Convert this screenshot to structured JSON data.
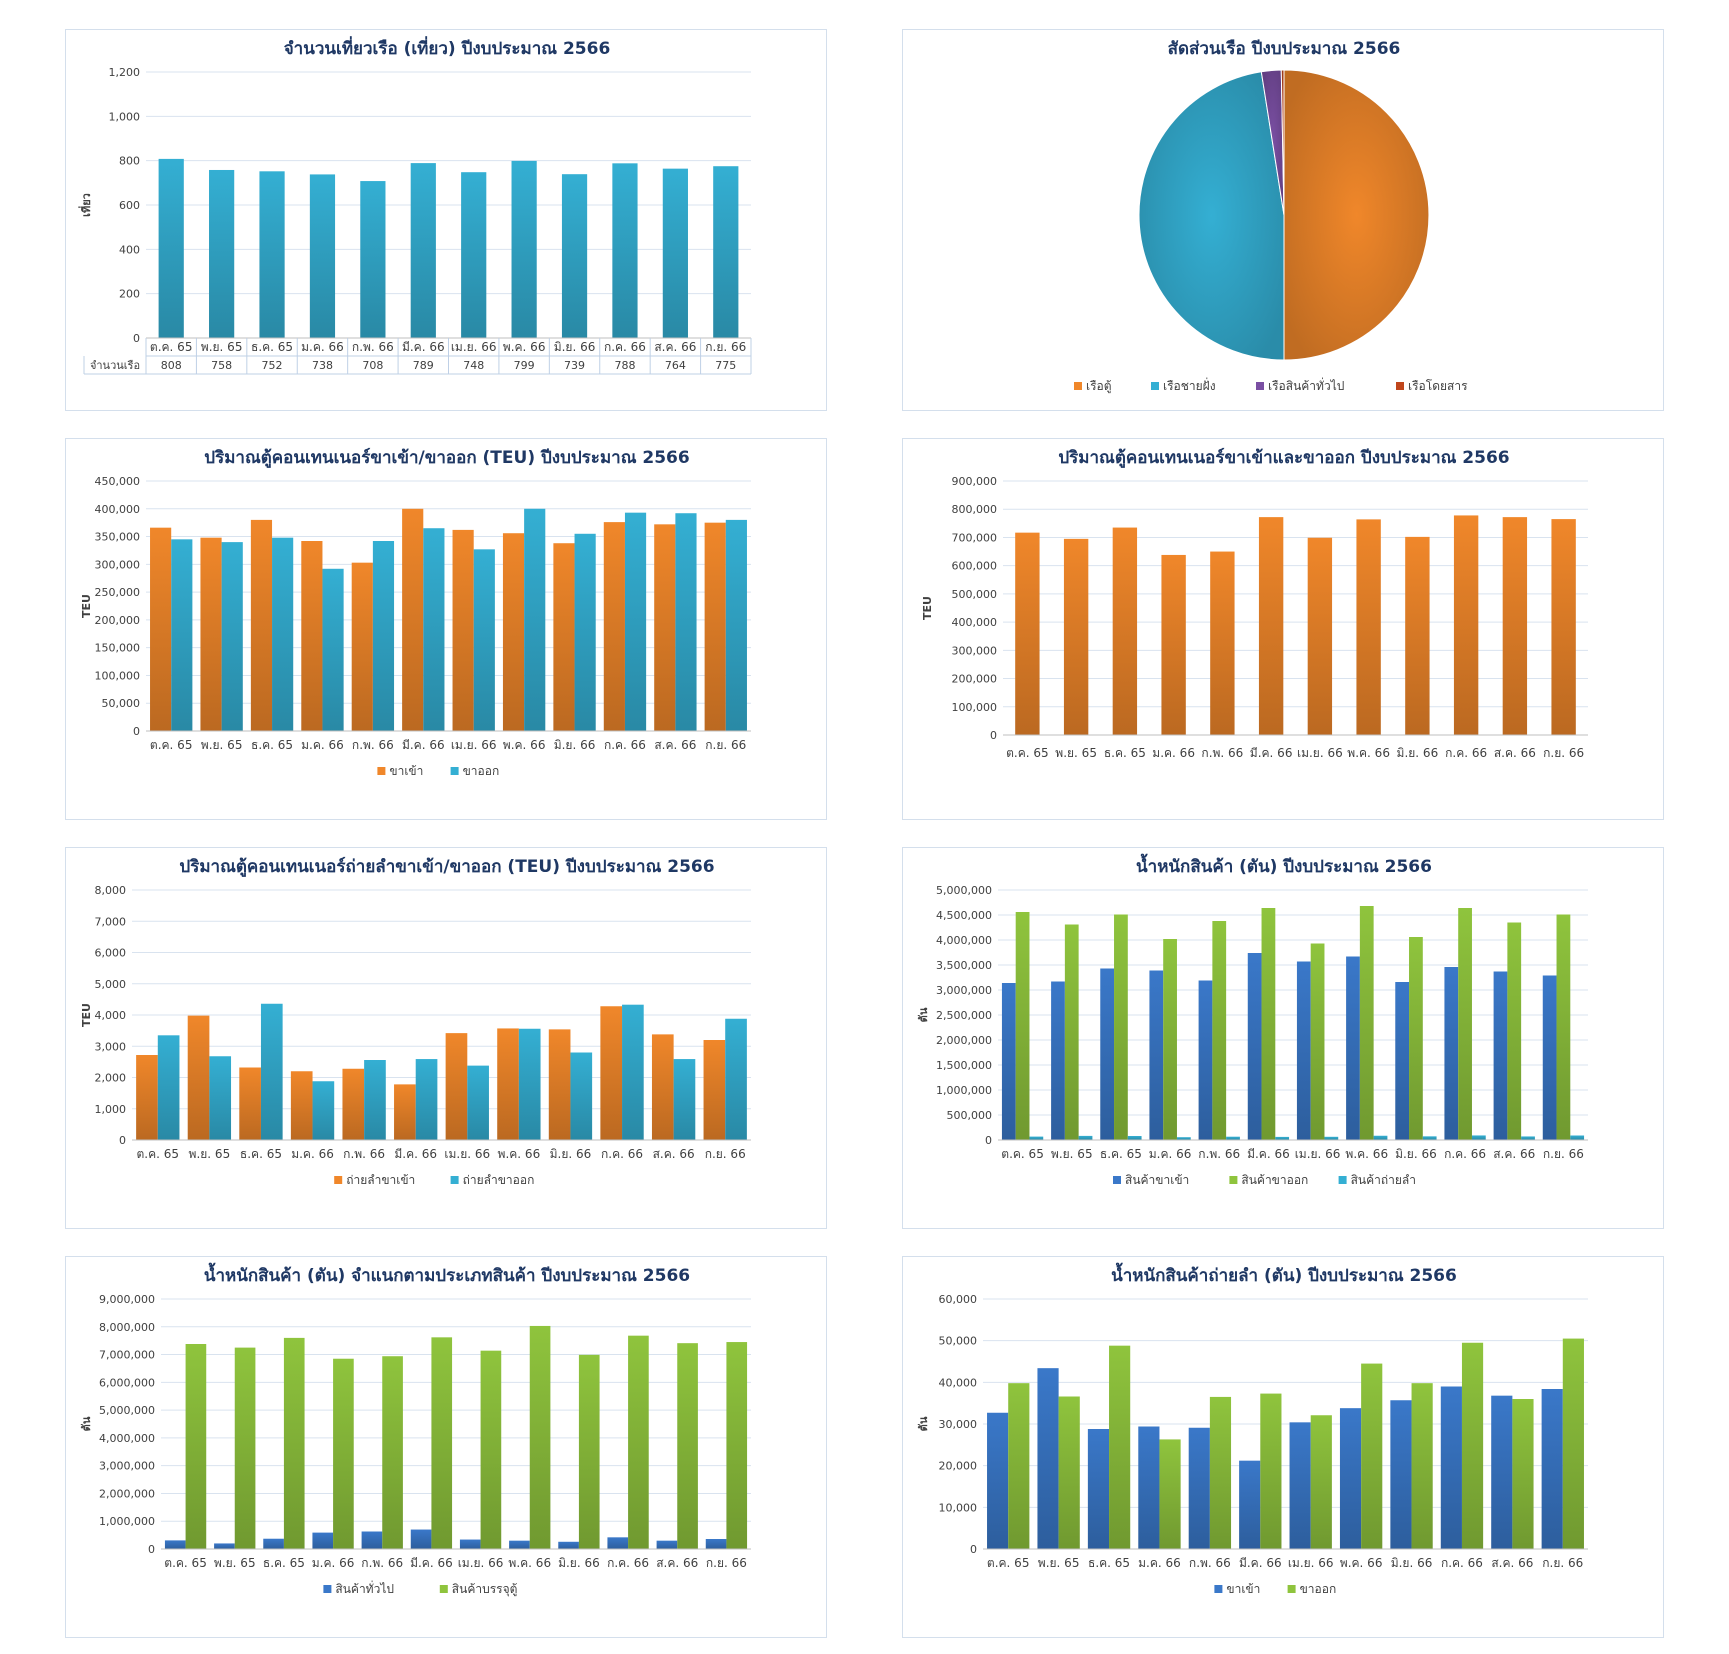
{
  "months": [
    "ต.ค. 65",
    "พ.ย. 65",
    "ธ.ค. 65",
    "ม.ค. 66",
    "ก.พ. 66",
    "มี.ค. 66",
    "เม.ย. 66",
    "พ.ค. 66",
    "มิ.ย. 66",
    "ก.ค. 66",
    "ส.ค. 66",
    "ก.ย. 66"
  ],
  "colors": {
    "blue_series": "#34afd3",
    "orange": "#f0872a",
    "green": "#8fc43d",
    "darkblue": "#3a78c9",
    "purple": "#7a4fa3",
    "red": "#c0461c"
  },
  "chart_data": [
    {
      "id": "c1",
      "type": "bar",
      "title": "จำนวนเที่ยวเรือ (เที่ยว) ปีงบประมาณ 2566",
      "ylabel": "เที่ยว",
      "ylim": [
        0,
        1200
      ],
      "ytick_step": 200,
      "ytick_labels": [
        "0",
        "200",
        "400",
        "600",
        "800",
        "1,000",
        "1,200"
      ],
      "categories": [
        "ต.ค. 65",
        "พ.ย. 65",
        "ธ.ค. 65",
        "ม.ค. 66",
        "ก.พ. 66",
        "มี.ค. 66",
        "เม.ย. 66",
        "พ.ค. 66",
        "มิ.ย. 66",
        "ก.ค. 66",
        "ส.ค. 66",
        "ก.ย. 66"
      ],
      "series": [
        {
          "name": "จำนวนเรือ",
          "color": "#34afd3",
          "values": [
            808,
            758,
            752,
            738,
            708,
            789,
            748,
            799,
            739,
            788,
            764,
            775
          ]
        }
      ],
      "data_table": true,
      "grid": true
    },
    {
      "id": "c2",
      "type": "pie",
      "title": "สัดส่วนเรือ ปีงบประมาณ 2566",
      "slices": [
        {
          "name": "เรือตู้",
          "value": 50,
          "color": "#f0872a"
        },
        {
          "name": "เรือชายฝั่ง",
          "value": 47.5,
          "color": "#34afd3"
        },
        {
          "name": "เรือสินค้าทั่วไป",
          "value": 2.2,
          "color": "#7a4fa3"
        },
        {
          "name": "เรือโดยสาร",
          "value": 0.3,
          "color": "#c0461c"
        }
      ],
      "legend": "bottom"
    },
    {
      "id": "c3",
      "type": "bar",
      "title": "ปริมาณตู้คอนเทนเนอร์ขาเข้า/ขาออก (TEU) ปีงบประมาณ 2566",
      "ylabel": "TEU",
      "ylim": [
        0,
        450000
      ],
      "ytick_labels": [
        "0",
        "50,000",
        "100,000",
        "150,000",
        "200,000",
        "250,000",
        "300,000",
        "350,000",
        "400,000",
        "450,000"
      ],
      "categories": [
        "ต.ค. 65",
        "พ.ย. 65",
        "ธ.ค. 65",
        "ม.ค. 66",
        "ก.พ. 66",
        "มี.ค. 66",
        "เม.ย. 66",
        "พ.ค. 66",
        "มิ.ย. 66",
        "ก.ค. 66",
        "ส.ค. 66",
        "ก.ย. 66"
      ],
      "series": [
        {
          "name": "ขาเข้า",
          "color": "#f0872a",
          "values": [
            366000,
            348000,
            380000,
            342000,
            303000,
            400000,
            362000,
            356000,
            338000,
            376000,
            372000,
            375000
          ]
        },
        {
          "name": "ขาออก",
          "color": "#34afd3",
          "values": [
            345000,
            340000,
            348000,
            292000,
            342000,
            365000,
            327000,
            400000,
            355000,
            393000,
            392000,
            380000
          ]
        }
      ],
      "legend": "bottom",
      "grid": true
    },
    {
      "id": "c4",
      "type": "bar",
      "title": "ปริมาณตู้คอนเทนเนอร์ขาเข้าและขาออก ปีงบประมาณ 2566",
      "ylabel": "TEU",
      "ylim": [
        0,
        900000
      ],
      "ytick_labels": [
        "0",
        "100,000",
        "200,000",
        "300,000",
        "400,000",
        "500,000",
        "600,000",
        "700,000",
        "800,000",
        "900,000"
      ],
      "categories": [
        "ต.ค. 65",
        "พ.ย. 65",
        "ธ.ค. 65",
        "ม.ค. 66",
        "ก.พ. 66",
        "มี.ค. 66",
        "เม.ย. 66",
        "พ.ค. 66",
        "มิ.ย. 66",
        "ก.ค. 66",
        "ส.ค. 66",
        "ก.ย. 66"
      ],
      "series": [
        {
          "name": "",
          "color": "#f0872a",
          "values": [
            717000,
            695000,
            735000,
            638000,
            650000,
            772000,
            699000,
            764000,
            702000,
            778000,
            772000,
            765000
          ]
        }
      ],
      "grid": true
    },
    {
      "id": "c5",
      "type": "bar",
      "title": "ปริมาณตู้คอนเทนเนอร์ถ่ายลำขาเข้า/ขาออก (TEU) ปีงบประมาณ 2566",
      "ylabel": "TEU",
      "ylim": [
        0,
        8000
      ],
      "ytick_labels": [
        "0",
        "1,000",
        "2,000",
        "3,000",
        "4,000",
        "5,000",
        "6,000",
        "7,000",
        "8,000"
      ],
      "categories": [
        "ต.ค. 65",
        "พ.ย. 65",
        "ธ.ค. 65",
        "ม.ค. 66",
        "ก.พ. 66",
        "มี.ค. 66",
        "เม.ย. 66",
        "พ.ค. 66",
        "มิ.ย. 66",
        "ก.ค. 66",
        "ส.ค. 66",
        "ก.ย. 66"
      ],
      "series": [
        {
          "name": "ถ่ายลำขาเข้า",
          "color": "#f0872a",
          "values": [
            2720,
            3980,
            2320,
            2200,
            2280,
            1780,
            3420,
            3570,
            3540,
            4280,
            3380,
            3200
          ]
        },
        {
          "name": "ถ่ายลำขาออก",
          "color": "#34afd3",
          "values": [
            3350,
            2680,
            4360,
            1880,
            2560,
            2590,
            2380,
            3560,
            2800,
            4330,
            2590,
            3880
          ]
        }
      ],
      "legend": "bottom",
      "grid": true
    },
    {
      "id": "c6",
      "type": "bar",
      "title": "น้ำหนักสินค้า (ตัน) ปีงบประมาณ 2566",
      "ylabel": "ตัน",
      "ylim": [
        0,
        5000000
      ],
      "ytick_labels": [
        "0",
        "500,000",
        "1,000,000",
        "1,500,000",
        "2,000,000",
        "2,500,000",
        "3,000,000",
        "3,500,000",
        "4,000,000",
        "4,500,000",
        "5,000,000"
      ],
      "categories": [
        "ต.ค. 65",
        "พ.ย. 65",
        "ธ.ค. 65",
        "ม.ค. 66",
        "ก.พ. 66",
        "มี.ค. 66",
        "เม.ย. 66",
        "พ.ค. 66",
        "มิ.ย. 66",
        "ก.ค. 66",
        "ส.ค. 66",
        "ก.ย. 66"
      ],
      "series": [
        {
          "name": "สินค้าขาเข้า",
          "color": "#3a78c9",
          "values": [
            3140000,
            3170000,
            3430000,
            3390000,
            3190000,
            3740000,
            3570000,
            3670000,
            3160000,
            3460000,
            3370000,
            3290000
          ]
        },
        {
          "name": "สินค้าขาออก",
          "color": "#8fc43d",
          "values": [
            4560000,
            4310000,
            4510000,
            4020000,
            4380000,
            4640000,
            3930000,
            4680000,
            4060000,
            4640000,
            4350000,
            4510000
          ]
        },
        {
          "name": "สินค้าถ่ายลำ",
          "color": "#34afd3",
          "values": [
            68000,
            82000,
            80000,
            56000,
            66000,
            62000,
            64000,
            85000,
            73000,
            91000,
            71000,
            90000
          ]
        }
      ],
      "legend": "bottom",
      "grid": true
    },
    {
      "id": "c7",
      "type": "bar",
      "title": "น้ำหนักสินค้า (ตัน) จำแนกตามประเภทสินค้า ปีงบประมาณ 2566",
      "ylabel": "ตัน",
      "ylim": [
        0,
        9000000
      ],
      "ytick_labels": [
        "0",
        "1,000,000",
        "2,000,000",
        "3,000,000",
        "4,000,000",
        "5,000,000",
        "6,000,000",
        "7,000,000",
        "8,000,000",
        "9,000,000"
      ],
      "categories": [
        "ต.ค. 65",
        "พ.ย. 65",
        "ธ.ค. 65",
        "ม.ค. 66",
        "ก.พ. 66",
        "มี.ค. 66",
        "เม.ย. 66",
        "พ.ค. 66",
        "มิ.ย. 66",
        "ก.ค. 66",
        "ส.ค. 66",
        "ก.ย. 66"
      ],
      "series": [
        {
          "name": "สินค้าทั่วไป",
          "color": "#3a78c9",
          "values": [
            310000,
            200000,
            370000,
            590000,
            630000,
            700000,
            340000,
            300000,
            260000,
            420000,
            300000,
            360000
          ]
        },
        {
          "name": "สินค้าบรรจุตู้",
          "color": "#8fc43d",
          "values": [
            7380000,
            7250000,
            7600000,
            6850000,
            6940000,
            7620000,
            7140000,
            8030000,
            6990000,
            7680000,
            7410000,
            7450000
          ]
        }
      ],
      "legend": "bottom",
      "grid": true
    },
    {
      "id": "c8",
      "type": "bar",
      "title": "น้ำหนักสินค้าถ่ายลำ (ตัน) ปีงบประมาณ 2566",
      "ylabel": "ตัน",
      "ylim": [
        0,
        60000
      ],
      "ytick_labels": [
        "0",
        "10,000",
        "20,000",
        "30,000",
        "40,000",
        "50,000",
        "60,000"
      ],
      "categories": [
        "ต.ค. 65",
        "พ.ย. 65",
        "ธ.ค. 65",
        "ม.ค. 66",
        "ก.พ. 66",
        "มี.ค. 66",
        "เม.ย. 66",
        "พ.ค. 66",
        "มิ.ย. 66",
        "ก.ค. 66",
        "ส.ค. 66",
        "ก.ย. 66"
      ],
      "series": [
        {
          "name": "ขาเข้า",
          "color": "#3a78c9",
          "values": [
            32700,
            43400,
            28800,
            29400,
            29100,
            21200,
            30400,
            33800,
            35700,
            39000,
            36800,
            38400
          ]
        },
        {
          "name": "ขาออก",
          "color": "#8fc43d",
          "values": [
            39800,
            36600,
            48800,
            26300,
            36500,
            37300,
            32100,
            44500,
            39800,
            49500,
            36000,
            50500
          ]
        }
      ],
      "legend": "bottom",
      "grid": true
    }
  ]
}
